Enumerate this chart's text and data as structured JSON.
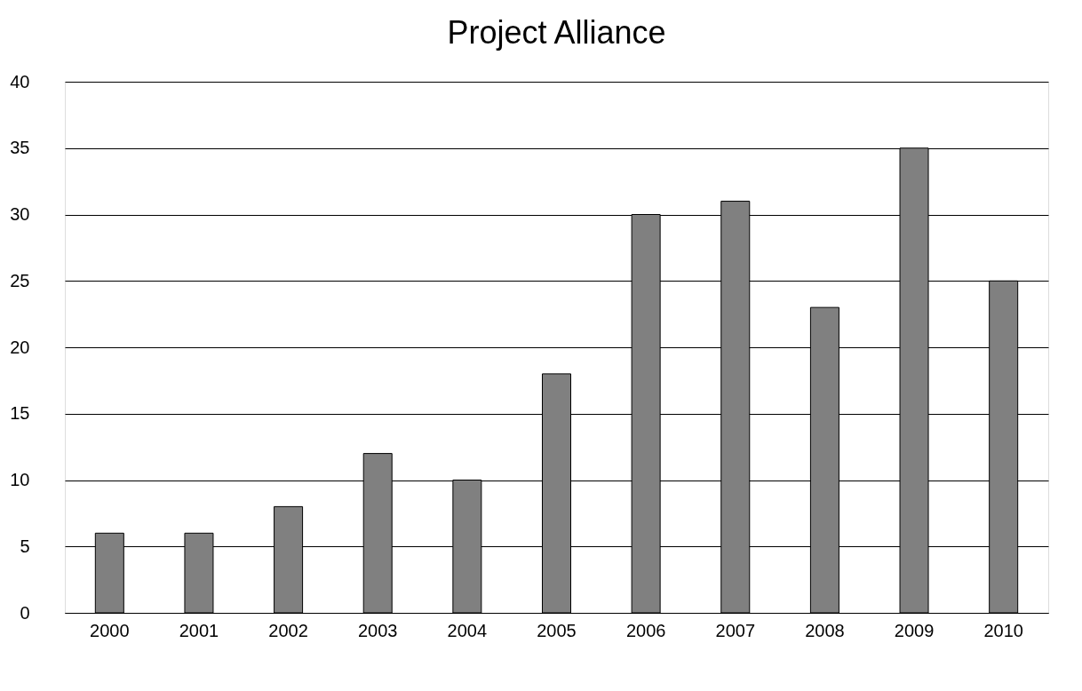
{
  "chart_data": {
    "type": "bar",
    "title": "Project Alliance",
    "categories": [
      "2000",
      "2001",
      "2002",
      "2003",
      "2004",
      "2005",
      "2006",
      "2007",
      "2008",
      "2009",
      "2010"
    ],
    "values": [
      6,
      6,
      8,
      12,
      10,
      18,
      30,
      31,
      23,
      35,
      25
    ],
    "color": "#808080",
    "ylim": [
      0,
      40
    ],
    "yticks": [
      0,
      5,
      10,
      15,
      20,
      25,
      30,
      35,
      40
    ],
    "grid": "y"
  }
}
